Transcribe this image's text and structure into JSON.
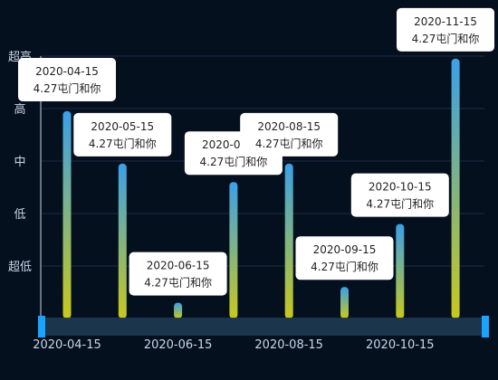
{
  "chart_data": {
    "type": "bar",
    "categories": [
      "2020-04-15",
      "2020-05-15",
      "2020-06-15",
      "2020-07-15",
      "2020-08-15",
      "2020-09-15",
      "2020-10-15",
      "2020-11-15"
    ],
    "values": [
      3.95,
      2.95,
      0.3,
      2.6,
      2.95,
      0.6,
      1.8,
      4.95
    ],
    "ylim": [
      0,
      5
    ],
    "y_ticks": [
      "超低",
      "低",
      "中",
      "高",
      "超高"
    ],
    "x_tick_labels": [
      "2020-04-15",
      "2020-06-15",
      "2020-08-15",
      "2020-10-15"
    ],
    "tooltip_text": "4.27屯门和你",
    "tooltip_dates": [
      "2020-04-15",
      "2020-05-15",
      "2020-06-15",
      "2020-07-15",
      "2020-08-15",
      "2020-09-15",
      "2020-10-15",
      "2020-11-15"
    ],
    "grid": true,
    "colors": {
      "bar_top": "#3aa0e8",
      "bar_bottom": "#c8c81c",
      "background": "#05101f",
      "slider": "#1aa3ff"
    }
  }
}
